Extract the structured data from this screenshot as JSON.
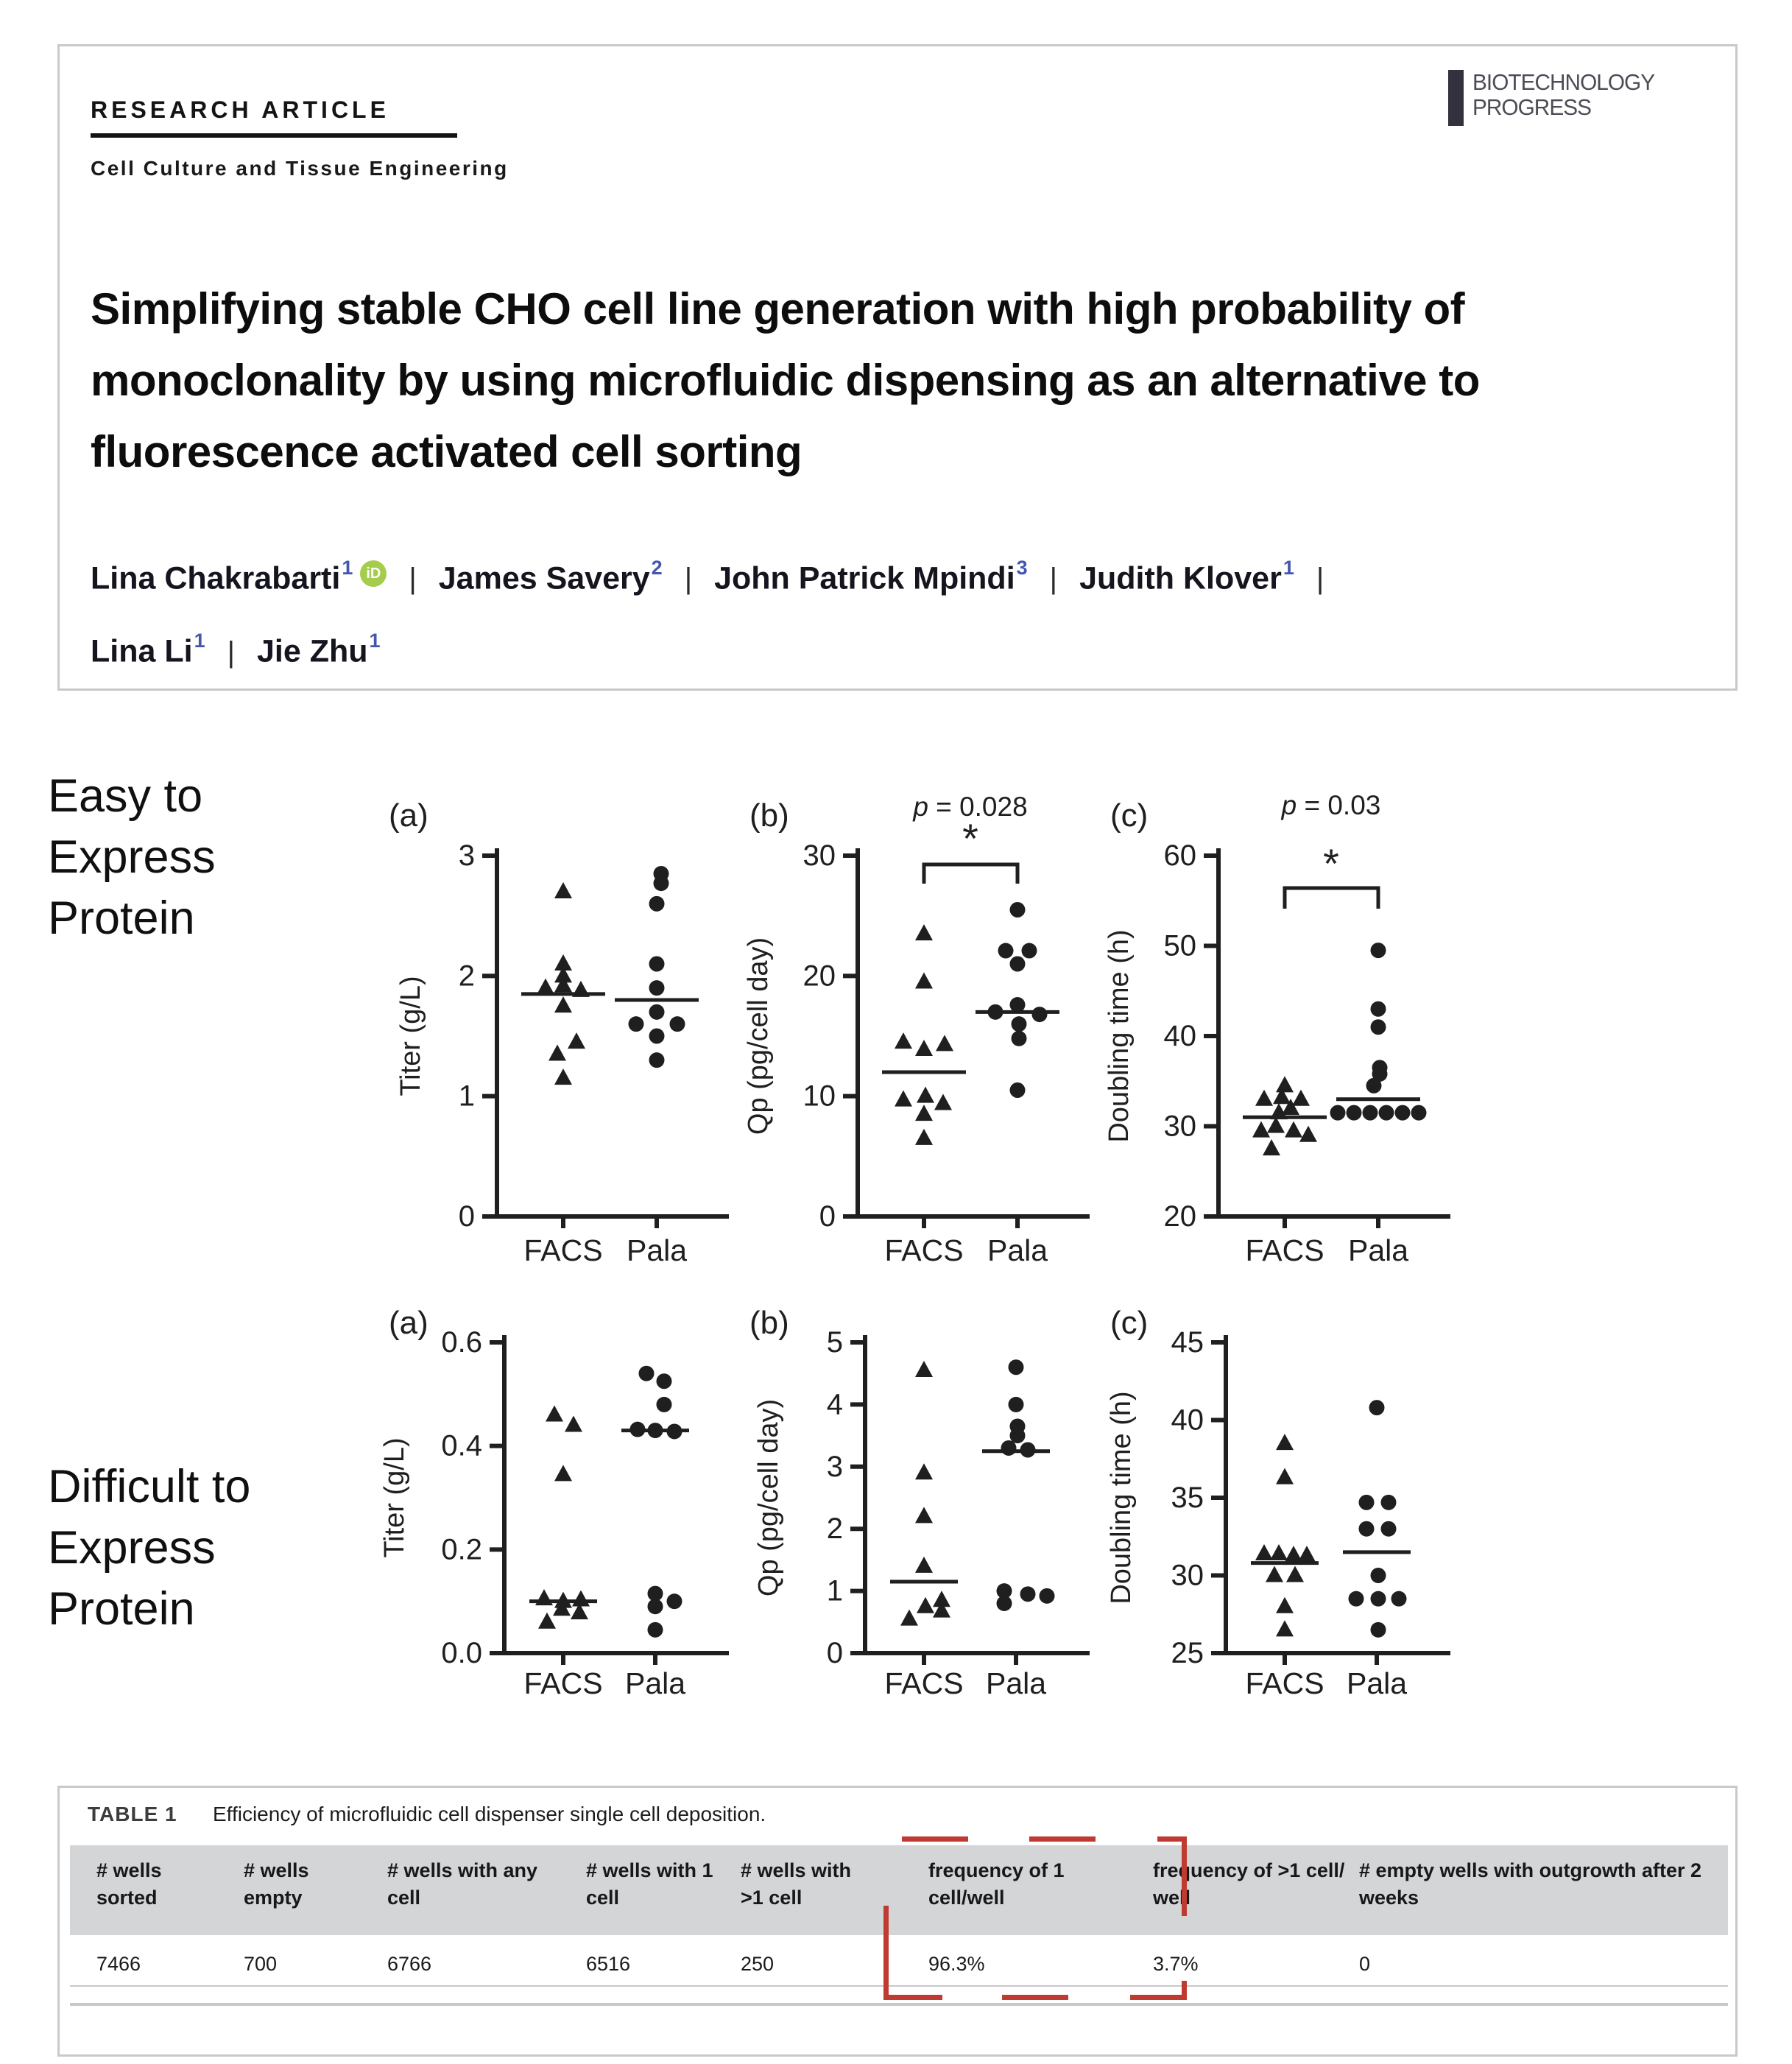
{
  "header": {
    "kicker": "RESEARCH ARTICLE",
    "subject": "Cell Culture and Tissue Engineering",
    "journal_name_line1": "BIOTECHNOLOGY",
    "journal_name_line2": "PROGRESS",
    "title": "Simplifying stable CHO cell line generation with high probability of monoclonality by using microfluidic dispensing as an alternative to fluorescence activated cell sorting",
    "author_separator": "|",
    "authors": [
      {
        "name": "Lina Chakrabarti",
        "sup": "1",
        "orcid": true
      },
      {
        "name": "James Savery",
        "sup": "2",
        "orcid": false
      },
      {
        "name": "John Patrick Mpindi",
        "sup": "3",
        "orcid": false
      },
      {
        "name": "Judith Klover",
        "sup": "1",
        "orcid": false
      },
      {
        "name": "Lina Li",
        "sup": "1",
        "orcid": false
      },
      {
        "name": "Jie Zhu",
        "sup": "1",
        "orcid": false
      }
    ],
    "orcid_icon_text": "iD"
  },
  "figure": {
    "row_labels": [
      [
        "Easy to",
        "Express",
        "Protein"
      ],
      [
        "Difficult to",
        "Express",
        "Protein"
      ]
    ],
    "x_categories": [
      "FACS",
      "Pala"
    ]
  },
  "chart_data": [
    {
      "id": "easy-titer",
      "row": 1,
      "panel": "(a)",
      "type": "scatter",
      "title": "Easy to Express Protein - Titer",
      "ylabel": "Titer (g/L)",
      "ylim": [
        0,
        3
      ],
      "ylabel_x": 70,
      "yticks": [
        {
          "v": 0,
          "t": "0"
        },
        {
          "v": 1,
          "t": "1"
        },
        {
          "v": 2,
          "t": "2"
        },
        {
          "v": 3,
          "t": "3"
        }
      ],
      "categories": [
        "FACS",
        "Pala"
      ],
      "series": [
        {
          "name": "FACS",
          "marker": "triangle",
          "median": 1.85,
          "points": [
            [
              2.7,
              0
            ],
            [
              2.1,
              0
            ],
            [
              2.0,
              0
            ],
            [
              1.9,
              -24
            ],
            [
              1.92,
              0
            ],
            [
              1.88,
              24
            ],
            [
              1.75,
              0
            ],
            [
              1.45,
              18
            ],
            [
              1.35,
              -8
            ],
            [
              1.15,
              0
            ]
          ]
        },
        {
          "name": "Pala",
          "marker": "circle",
          "median": 1.8,
          "points": [
            [
              2.85,
              6
            ],
            [
              2.77,
              6
            ],
            [
              2.6,
              0
            ],
            [
              2.1,
              0
            ],
            [
              1.9,
              0
            ],
            [
              1.7,
              0
            ],
            [
              1.6,
              -28
            ],
            [
              1.6,
              28
            ],
            [
              1.5,
              0
            ],
            [
              1.3,
              0
            ]
          ]
        }
      ]
    },
    {
      "id": "easy-qp",
      "row": 1,
      "panel": "(b)",
      "type": "scatter",
      "title": "Easy to Express Protein - Qp",
      "ylabel": "Qp (pg/cell day)",
      "ylim": [
        0,
        30
      ],
      "ylabel_x": 52,
      "yticks": [
        {
          "v": 0,
          "t": "0"
        },
        {
          "v": 10,
          "t": "10"
        },
        {
          "v": 20,
          "t": "20"
        },
        {
          "v": 30,
          "t": "30"
        }
      ],
      "categories": [
        "FACS",
        "Pala"
      ],
      "sig": {
        "p_label": "p = 0.028",
        "star": "*",
        "p_y": 68,
        "star_y": 118,
        "bracket_y": 134,
        "drop": 26
      },
      "series": [
        {
          "name": "FACS",
          "marker": "triangle",
          "median": 12,
          "points": [
            [
              23.5,
              0
            ],
            [
              19.5,
              0
            ],
            [
              14.5,
              -28
            ],
            [
              13.9,
              0
            ],
            [
              14.3,
              28
            ],
            [
              10,
              2
            ],
            [
              9.7,
              -28
            ],
            [
              9.4,
              26
            ],
            [
              8.5,
              0
            ],
            [
              6.5,
              0
            ]
          ]
        },
        {
          "name": "Pala",
          "marker": "circle",
          "median": 17,
          "points": [
            [
              25.5,
              0
            ],
            [
              22.1,
              -16
            ],
            [
              22.1,
              16
            ],
            [
              21,
              0
            ],
            [
              17.6,
              0
            ],
            [
              17,
              -30
            ],
            [
              16.8,
              30
            ],
            [
              16,
              2
            ],
            [
              14.8,
              2
            ],
            [
              10.5,
              0
            ]
          ]
        }
      ]
    },
    {
      "id": "easy-doubling",
      "row": 1,
      "panel": "(c)",
      "type": "scatter",
      "title": "Easy to Express Protein - Doubling time",
      "ylabel": "Doubling time (h)",
      "ylim": [
        20,
        60
      ],
      "ylabel_x": 52,
      "yticks": [
        {
          "v": 20,
          "t": "20"
        },
        {
          "v": 30,
          "t": "30"
        },
        {
          "v": 40,
          "t": "40"
        },
        {
          "v": 50,
          "t": "50"
        },
        {
          "v": 60,
          "t": "60"
        }
      ],
      "categories": [
        "FACS",
        "Pala"
      ],
      "sig": {
        "p_label": "p = 0.03",
        "star": "*",
        "p_y": 66,
        "star_y": 152,
        "bracket_y": 166,
        "drop": 28
      },
      "series": [
        {
          "name": "FACS",
          "marker": "triangle",
          "median": 31,
          "points": [
            [
              34.5,
              0
            ],
            [
              33,
              -28
            ],
            [
              33.2,
              -4
            ],
            [
              33,
              22
            ],
            [
              32,
              8
            ],
            [
              31.5,
              -8
            ],
            [
              30,
              -12
            ],
            [
              29.5,
              -32
            ],
            [
              29.5,
              12
            ],
            [
              29,
              32
            ],
            [
              27.5,
              -18
            ]
          ]
        },
        {
          "name": "Pala",
          "marker": "circle",
          "median": 33,
          "points": [
            [
              49.5,
              0
            ],
            [
              43,
              0
            ],
            [
              41,
              0
            ],
            [
              36.5,
              2
            ],
            [
              35.8,
              2
            ],
            [
              34.5,
              -6
            ],
            [
              31.5,
              -55
            ],
            [
              31.5,
              -33
            ],
            [
              31.5,
              -11
            ],
            [
              31.5,
              11
            ],
            [
              31.5,
              33
            ],
            [
              31.5,
              55
            ]
          ]
        }
      ]
    },
    {
      "id": "difficult-titer",
      "row": 2,
      "panel": "(a)",
      "type": "scatter",
      "title": "Difficult to Express Protein - Titer",
      "ylabel": "Titer (g/L)",
      "ylim": [
        0,
        0.6
      ],
      "ylabel_x": 48,
      "yticks": [
        {
          "v": 0,
          "t": "0.0"
        },
        {
          "v": 0.2,
          "t": "0.2"
        },
        {
          "v": 0.4,
          "t": "0.4"
        },
        {
          "v": 0.6,
          "t": "0.6"
        }
      ],
      "categories": [
        "FACS",
        "Pala"
      ],
      "series": [
        {
          "name": "FACS",
          "marker": "triangle",
          "median": 0.1,
          "points": [
            [
              0.46,
              -12
            ],
            [
              0.44,
              14
            ],
            [
              0.345,
              0
            ],
            [
              0.105,
              -26
            ],
            [
              0.1,
              0
            ],
            [
              0.103,
              24
            ],
            [
              0.085,
              -2
            ],
            [
              0.078,
              22
            ],
            [
              0.06,
              -22
            ]
          ]
        },
        {
          "name": "Pala",
          "marker": "circle",
          "median": 0.43,
          "points": [
            [
              0.54,
              -12
            ],
            [
              0.525,
              12
            ],
            [
              0.48,
              12
            ],
            [
              0.432,
              -24
            ],
            [
              0.43,
              0
            ],
            [
              0.428,
              26
            ],
            [
              0.115,
              0
            ],
            [
              0.1,
              26
            ],
            [
              0.09,
              0
            ],
            [
              0.045,
              0
            ]
          ]
        }
      ]
    },
    {
      "id": "difficult-qp",
      "row": 2,
      "panel": "(b)",
      "type": "scatter",
      "title": "Difficult to Express Protein - Qp",
      "ylabel": "Qp (pg/cell day)",
      "ylim": [
        0,
        5
      ],
      "ylabel_x": 66,
      "yticks": [
        {
          "v": 0,
          "t": "0"
        },
        {
          "v": 1,
          "t": "1"
        },
        {
          "v": 2,
          "t": "2"
        },
        {
          "v": 3,
          "t": "3"
        },
        {
          "v": 4,
          "t": "4"
        },
        {
          "v": 5,
          "t": "5"
        }
      ],
      "categories": [
        "FACS",
        "Pala"
      ],
      "series": [
        {
          "name": "FACS",
          "marker": "triangle",
          "median": 1.15,
          "points": [
            [
              4.55,
              0
            ],
            [
              2.9,
              0
            ],
            [
              2.2,
              0
            ],
            [
              1.4,
              0
            ],
            [
              0.85,
              24
            ],
            [
              0.75,
              2
            ],
            [
              0.68,
              24
            ],
            [
              0.55,
              -20
            ]
          ]
        },
        {
          "name": "Pala",
          "marker": "circle",
          "median": 3.25,
          "points": [
            [
              4.6,
              0
            ],
            [
              4.0,
              0
            ],
            [
              3.65,
              2
            ],
            [
              3.5,
              2
            ],
            [
              3.3,
              -10
            ],
            [
              3.27,
              16
            ],
            [
              1.0,
              -16
            ],
            [
              0.95,
              16
            ],
            [
              0.92,
              42
            ],
            [
              0.8,
              -16
            ]
          ]
        }
      ]
    },
    {
      "id": "difficult-doubling",
      "row": 2,
      "panel": "(c)",
      "type": "scatter",
      "title": "Difficult to Express Protein - Doubling time",
      "ylabel": "Doubling time (h)",
      "ylim": [
        25,
        45
      ],
      "ylabel_x": 55,
      "yticks": [
        {
          "v": 25,
          "t": "25"
        },
        {
          "v": 30,
          "t": "30"
        },
        {
          "v": 35,
          "t": "35"
        },
        {
          "v": 40,
          "t": "40"
        },
        {
          "v": 45,
          "t": "45"
        }
      ],
      "categories": [
        "FACS",
        "Pala"
      ],
      "series": [
        {
          "name": "FACS",
          "marker": "triangle",
          "median": 30.8,
          "points": [
            [
              38.5,
              0
            ],
            [
              36.3,
              0
            ],
            [
              31.4,
              -28
            ],
            [
              31.4,
              -8
            ],
            [
              31.3,
              12
            ],
            [
              31.3,
              30
            ],
            [
              30,
              -14
            ],
            [
              30,
              14
            ],
            [
              28,
              0
            ],
            [
              26.5,
              0
            ]
          ]
        },
        {
          "name": "Pala",
          "marker": "circle",
          "median": 31.5,
          "points": [
            [
              40.8,
              0
            ],
            [
              34.7,
              -14
            ],
            [
              34.7,
              16
            ],
            [
              33,
              -14
            ],
            [
              33,
              16
            ],
            [
              30,
              2
            ],
            [
              28.5,
              -28
            ],
            [
              28.5,
              2
            ],
            [
              28.5,
              30
            ],
            [
              26.5,
              2
            ]
          ]
        }
      ]
    }
  ],
  "table": {
    "label": "TABLE 1",
    "caption": "Efficiency of microfluidic cell dispenser single cell deposition.",
    "columns": [
      "# wells sorted",
      "# wells empty",
      "# wells with any cell",
      "# wells with 1 cell",
      "# wells with >1 cell",
      "frequency of 1 cell/well",
      "frequency of >1 cell/ well",
      "# empty wells with outgrowth after 2 weeks"
    ],
    "rows": [
      [
        "7466",
        "700",
        "6766",
        "6516",
        "250",
        "96.3%",
        "3.7%",
        "0"
      ]
    ]
  },
  "colors": {
    "annotation_red": "#bf3a30",
    "superscript_blue": "#4456b0",
    "orcid_green": "#a6cc4d",
    "table_header_band": "#d4d5d7",
    "card_border": "#c9c9c9",
    "chart_ink": "#1f1f1f"
  }
}
